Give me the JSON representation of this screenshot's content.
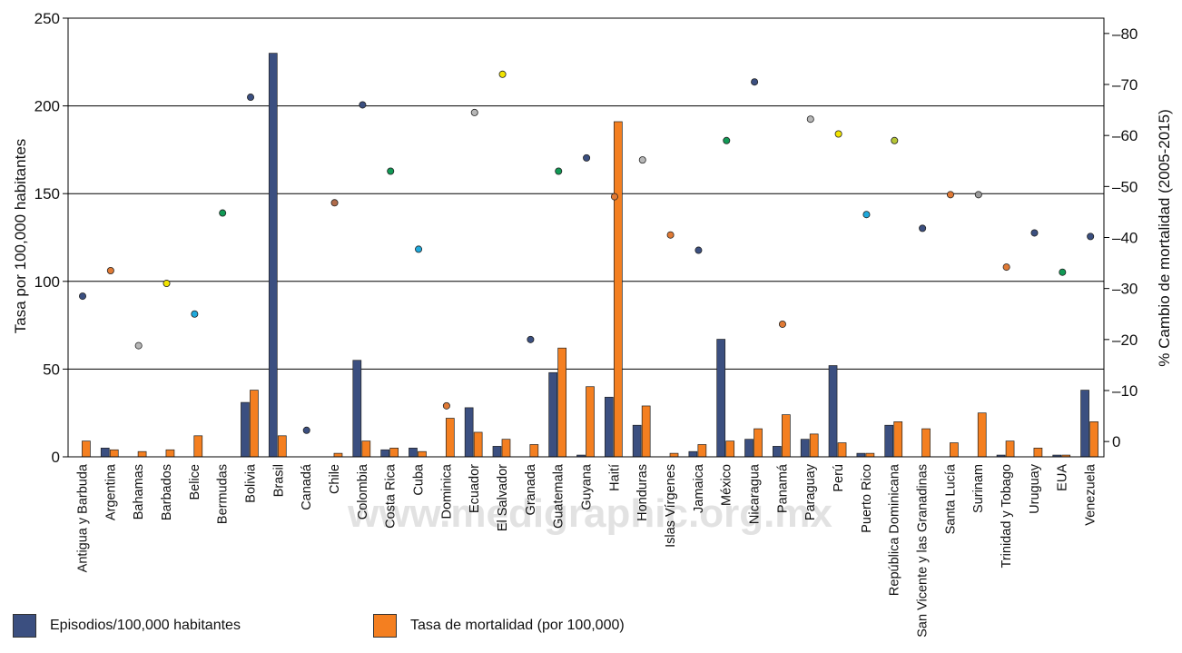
{
  "watermark": "www.medigraphic.org.mx",
  "legend": {
    "episodes": {
      "label": "Episodios/100,000 habitantes",
      "color": "#3b4f80"
    },
    "mortality": {
      "label": "Tasa de mortalidad (por 100,000)",
      "color": "#f47f20"
    }
  },
  "chart_data": {
    "type": "bar",
    "title": "",
    "ylabel": "Tasa por 100,000 habitantes",
    "y2label": "% Cambio de mortalidad (2005-2015)",
    "ylim": [
      0,
      250
    ],
    "yticks": [
      0,
      50,
      100,
      150,
      200,
      250
    ],
    "y2lim": [
      -3,
      83
    ],
    "y2ticks": [
      0,
      10,
      20,
      30,
      40,
      50,
      60,
      70,
      80
    ],
    "y2tick_prefix": "–",
    "grid": true,
    "legend_position": "bottom",
    "categories": [
      "Antigua y Barbuda",
      "Argentina",
      "Bahamas",
      "Barbados",
      "Belice",
      "Bermudas",
      "Bolivia",
      "Brasil",
      "Canadá",
      "Chile",
      "Colombia",
      "Costa Rica",
      "Cuba",
      "Dominica",
      "Ecuador",
      "El Salvador",
      "Granada",
      "Guatemala",
      "Guyana",
      "Haití",
      "Honduras",
      "Islas Vírgenes",
      "Jamaica",
      "México",
      "Nicaragua",
      "Panamá",
      "Paraguay",
      "Perú",
      "Puerto Rico",
      "República Dominicana",
      "San Vicente y las Granadinas",
      "Santa Lucía",
      "Surinam",
      "Trinidad y Tobago",
      "Uruguay",
      "EUA",
      "Venezuela"
    ],
    "series": [
      {
        "name": "Episodios/100,000 habitantes",
        "color": "#3b4f80",
        "values": [
          0,
          5,
          0,
          0,
          0,
          0,
          31,
          230,
          0,
          0,
          55,
          4,
          5,
          0,
          28,
          6,
          0,
          48,
          1,
          34,
          18,
          0,
          3,
          67,
          10,
          6,
          10,
          52,
          2,
          18,
          0,
          0,
          0,
          1,
          0,
          1,
          38
        ]
      },
      {
        "name": "Tasa de mortalidad (por 100,000)",
        "color": "#f47f20",
        "values": [
          9,
          4,
          3,
          4,
          12,
          0,
          38,
          12,
          0,
          2,
          9,
          5,
          3,
          22,
          14,
          10,
          7,
          62,
          40,
          191,
          29,
          2,
          7,
          9,
          16,
          24,
          13,
          8,
          2,
          20,
          16,
          8,
          25,
          9,
          5,
          1,
          20
        ]
      }
    ],
    "scatter_series": {
      "axis": "right",
      "points": [
        {
          "category": "Antigua y Barbuda",
          "value": 28.5,
          "color": "#3b4f80"
        },
        {
          "category": "Argentina",
          "value": 33.5,
          "color": "#e07a35"
        },
        {
          "category": "Bahamas",
          "value": 18.8,
          "color": "#b7b7b7"
        },
        {
          "category": "Barbados",
          "value": 31,
          "color": "#f2e400"
        },
        {
          "category": "Belice",
          "value": 25,
          "color": "#1fa9dc"
        },
        {
          "category": "Bermudas",
          "value": 44.8,
          "color": "#119955"
        },
        {
          "category": "Bolivia",
          "value": 67.5,
          "color": "#3b4f80"
        },
        {
          "category": "Canadá",
          "value": 2.2,
          "color": "#3b4f80"
        },
        {
          "category": "Chile",
          "value": 46.8,
          "color": "#b06b4a"
        },
        {
          "category": "Colombia",
          "value": 66,
          "color": "#3b4f80"
        },
        {
          "category": "Costa Rica",
          "value": 53,
          "color": "#119955"
        },
        {
          "category": "Cuba",
          "value": 37.7,
          "color": "#1fa9dc"
        },
        {
          "category": "Dominica",
          "value": 7,
          "color": "#e07a35"
        },
        {
          "category": "Ecuador",
          "value": 64.5,
          "color": "#b7b7b7"
        },
        {
          "category": "El Salvador",
          "value": 72,
          "color": "#f2e400"
        },
        {
          "category": "Granada",
          "value": 20,
          "color": "#3b4f80"
        },
        {
          "category": "Guatemala",
          "value": 53,
          "color": "#119955"
        },
        {
          "category": "Guyana",
          "value": 55.6,
          "color": "#3b4f80"
        },
        {
          "category": "Haití",
          "value": 48,
          "color": "#e07a35"
        },
        {
          "category": "Honduras",
          "value": 55.2,
          "color": "#b7b7b7"
        },
        {
          "category": "Islas Vírgenes",
          "value": 40.5,
          "color": "#e07a35"
        },
        {
          "category": "Jamaica",
          "value": 37.5,
          "color": "#3b4f80"
        },
        {
          "category": "México",
          "value": 59,
          "color": "#119955"
        },
        {
          "category": "Nicaragua",
          "value": 70.5,
          "color": "#3b4f80"
        },
        {
          "category": "Panamá",
          "value": 23,
          "color": "#e07a35"
        },
        {
          "category": "Paraguay",
          "value": 63.2,
          "color": "#b7b7b7"
        },
        {
          "category": "Perú",
          "value": 60.3,
          "color": "#f2e400"
        },
        {
          "category": "Puerto Rico",
          "value": 44.5,
          "color": "#1fa9dc"
        },
        {
          "category": "República Dominicana",
          "value": 59,
          "color": "#b5c535"
        },
        {
          "category": "San Vicente y las Granadinas",
          "value": 41.8,
          "color": "#3b4f80"
        },
        {
          "category": "Santa Lucía",
          "value": 48.4,
          "color": "#e07a35"
        },
        {
          "category": "Surinam",
          "value": 48.4,
          "color": "#9a9a9a"
        },
        {
          "category": "Trinidad y Tobago",
          "value": 34.2,
          "color": "#e07a35"
        },
        {
          "category": "Uruguay",
          "value": 40.9,
          "color": "#3b4f80"
        },
        {
          "category": "EUA",
          "value": 33.2,
          "color": "#119955"
        },
        {
          "category": "Venezuela",
          "value": 40.2,
          "color": "#3b4f80"
        }
      ]
    }
  }
}
